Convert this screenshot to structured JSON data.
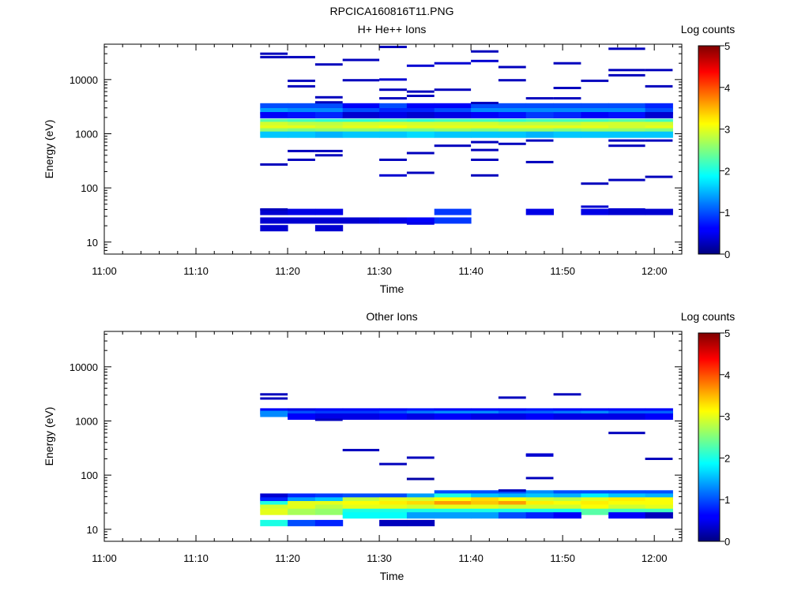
{
  "figure_title": "RPCICA160816T11.PNG",
  "chart_data": [
    {
      "type": "heatmap",
      "title": "H+ He++ Ions",
      "xlabel": "Time",
      "ylabel": "Energy (eV)",
      "x_axis": {
        "range": [
          "11:00",
          "12:03"
        ],
        "ticks": [
          "11:00",
          "11:10",
          "11:20",
          "11:30",
          "11:40",
          "11:50",
          "12:00"
        ]
      },
      "y_axis": {
        "scale": "log",
        "range": [
          6,
          45000
        ],
        "ticks": [
          "10",
          "100",
          "1000",
          "10000"
        ]
      },
      "colorbar": {
        "label": "Log counts",
        "range": [
          0,
          5
        ],
        "ticks": [
          "0",
          "1",
          "2",
          "3",
          "4",
          "5"
        ]
      },
      "time_columns": [
        "11:17",
        "11:20",
        "11:23",
        "11:26",
        "11:30",
        "11:33",
        "11:36",
        "11:40",
        "11:43",
        "11:46",
        "11:49",
        "11:52",
        "11:55",
        "11:59"
      ],
      "time_end": "12:02",
      "dense_rows": [
        {
          "energy": 3200,
          "values": [
            1.0,
            1.0,
            1.0,
            0.6,
            1.0,
            0.6,
            0.6,
            1.0,
            1.0,
            1.0,
            1.0,
            1.0,
            1.0,
            0.8
          ]
        },
        {
          "energy": 2600,
          "values": [
            1.4,
            1.3,
            1.3,
            1.0,
            0.8,
            0.8,
            1.0,
            1.3,
            1.3,
            1.3,
            1.3,
            1.3,
            1.3,
            1.0
          ]
        },
        {
          "energy": 2200,
          "values": [
            0.6,
            0.7,
            0.8,
            0.4,
            0.5,
            0.4,
            0.5,
            0.6,
            0.7,
            0.9,
            0.8,
            0.6,
            0.7,
            0.4
          ]
        },
        {
          "energy": 1650,
          "values": [
            2.3,
            2.2,
            2.1,
            2.1,
            2.2,
            2.1,
            2.2,
            2.2,
            2.1,
            2.2,
            2.2,
            2.2,
            2.3,
            2.2
          ]
        },
        {
          "energy": 1450,
          "values": [
            2.9,
            2.8,
            2.8,
            2.9,
            2.9,
            2.9,
            2.9,
            2.9,
            2.8,
            2.8,
            2.8,
            2.9,
            2.9,
            2.9
          ]
        },
        {
          "energy": 1250,
          "values": [
            3.0,
            3.0,
            2.9,
            3.0,
            3.1,
            3.0,
            3.0,
            3.0,
            3.0,
            3.0,
            3.0,
            3.0,
            2.9,
            3.0
          ]
        },
        {
          "energy": 1100,
          "values": [
            2.6,
            2.5,
            2.6,
            2.6,
            2.5,
            2.5,
            2.6,
            2.5,
            2.6,
            2.6,
            2.5,
            2.6,
            2.6,
            2.5
          ]
        },
        {
          "energy": 960,
          "values": [
            1.6,
            1.6,
            1.5,
            1.6,
            1.6,
            1.7,
            1.6,
            1.6,
            1.6,
            1.5,
            1.6,
            1.6,
            1.6,
            1.6
          ]
        },
        {
          "energy": 36,
          "values": [
            0.4,
            0.5,
            0.5,
            null,
            null,
            null,
            0.9,
            null,
            null,
            0.5,
            null,
            0.5,
            0.4,
            0.4
          ]
        },
        {
          "energy": 25,
          "values": [
            0.4,
            0.4,
            0.4,
            0.4,
            0.5,
            0.6,
            0.9,
            null,
            null,
            null,
            null,
            null,
            null,
            null
          ]
        },
        {
          "energy": 18,
          "values": [
            0.4,
            null,
            0.4,
            null,
            null,
            null,
            null,
            null,
            null,
            null,
            null,
            null,
            null,
            null
          ]
        }
      ],
      "sparse_marks": [
        {
          "col": 0,
          "energy": 30000,
          "v": 0.3
        },
        {
          "col": 0,
          "energy": 26000,
          "v": 0.3
        },
        {
          "col": 1,
          "energy": 26000,
          "v": 0.3
        },
        {
          "col": 2,
          "energy": 19000,
          "v": 0.3
        },
        {
          "col": 3,
          "energy": 23000,
          "v": 0.3
        },
        {
          "col": 4,
          "energy": 40000,
          "v": 0.3
        },
        {
          "col": 5,
          "energy": 18000,
          "v": 0.4
        },
        {
          "col": 6,
          "energy": 20000,
          "v": 0.4
        },
        {
          "col": 7,
          "energy": 33000,
          "v": 0.3
        },
        {
          "col": 7,
          "energy": 22000,
          "v": 0.4
        },
        {
          "col": 8,
          "energy": 17000,
          "v": 0.3
        },
        {
          "col": 9,
          "energy": 4500,
          "v": 0.3
        },
        {
          "col": 10,
          "energy": 20000,
          "v": 0.3
        },
        {
          "col": 12,
          "energy": 37000,
          "v": 0.3
        },
        {
          "col": 12,
          "energy": 15000,
          "v": 0.3
        },
        {
          "col": 13,
          "energy": 15000,
          "v": 0.3
        },
        {
          "col": 1,
          "energy": 9500,
          "v": 0.3
        },
        {
          "col": 1,
          "energy": 7500,
          "v": 0.3
        },
        {
          "col": 2,
          "energy": 4700,
          "v": 0.3
        },
        {
          "col": 2,
          "energy": 3800,
          "v": 0.3
        },
        {
          "col": 3,
          "energy": 9700,
          "v": 0.3
        },
        {
          "col": 4,
          "energy": 10000,
          "v": 0.4
        },
        {
          "col": 4,
          "energy": 6500,
          "v": 0.3
        },
        {
          "col": 4,
          "energy": 4500,
          "v": 0.3
        },
        {
          "col": 5,
          "energy": 6000,
          "v": 0.3
        },
        {
          "col": 5,
          "energy": 5000,
          "v": 0.3
        },
        {
          "col": 6,
          "energy": 6500,
          "v": 0.3
        },
        {
          "col": 7,
          "energy": 3700,
          "v": 0.3
        },
        {
          "col": 8,
          "energy": 9700,
          "v": 0.3
        },
        {
          "col": 10,
          "energy": 4500,
          "v": 0.3
        },
        {
          "col": 10,
          "energy": 7000,
          "v": 0.3
        },
        {
          "col": 11,
          "energy": 9500,
          "v": 0.3
        },
        {
          "col": 12,
          "energy": 12000,
          "v": 0.3
        },
        {
          "col": 13,
          "energy": 7500,
          "v": 0.3
        },
        {
          "col": 0,
          "energy": 270,
          "v": 0.3
        },
        {
          "col": 1,
          "energy": 480,
          "v": 0.3
        },
        {
          "col": 1,
          "energy": 330,
          "v": 0.3
        },
        {
          "col": 2,
          "energy": 480,
          "v": 0.3
        },
        {
          "col": 2,
          "energy": 400,
          "v": 0.3
        },
        {
          "col": 4,
          "energy": 330,
          "v": 0.3
        },
        {
          "col": 4,
          "energy": 170,
          "v": 0.4
        },
        {
          "col": 5,
          "energy": 440,
          "v": 0.3
        },
        {
          "col": 5,
          "energy": 190,
          "v": 0.3
        },
        {
          "col": 6,
          "energy": 600,
          "v": 0.3
        },
        {
          "col": 7,
          "energy": 700,
          "v": 0.3
        },
        {
          "col": 7,
          "energy": 500,
          "v": 0.3
        },
        {
          "col": 7,
          "energy": 330,
          "v": 0.3
        },
        {
          "col": 7,
          "energy": 170,
          "v": 0.3
        },
        {
          "col": 8,
          "energy": 650,
          "v": 0.3
        },
        {
          "col": 9,
          "energy": 750,
          "v": 0.3
        },
        {
          "col": 9,
          "energy": 300,
          "v": 0.3
        },
        {
          "col": 11,
          "energy": 120,
          "v": 0.3
        },
        {
          "col": 12,
          "energy": 750,
          "v": 0.3
        },
        {
          "col": 12,
          "energy": 600,
          "v": 0.3
        },
        {
          "col": 12,
          "energy": 140,
          "v": 0.3
        },
        {
          "col": 13,
          "energy": 750,
          "v": 0.3
        },
        {
          "col": 13,
          "energy": 160,
          "v": 0.3
        },
        {
          "col": 0,
          "energy": 40,
          "v": 0.3
        },
        {
          "col": 5,
          "energy": 22,
          "v": 0.5
        },
        {
          "col": 11,
          "energy": 45,
          "v": 0.4
        },
        {
          "col": 12,
          "energy": 40,
          "v": 0.4
        }
      ]
    },
    {
      "type": "heatmap",
      "title": "Other Ions",
      "xlabel": "Time",
      "ylabel": "Energy (eV)",
      "x_axis": {
        "range": [
          "11:00",
          "12:03"
        ],
        "ticks": [
          "11:00",
          "11:10",
          "11:20",
          "11:30",
          "11:40",
          "11:50",
          "12:00"
        ]
      },
      "y_axis": {
        "scale": "log",
        "range": [
          6,
          45000
        ],
        "ticks": [
          "10",
          "100",
          "1000",
          "10000"
        ]
      },
      "colorbar": {
        "label": "Log counts",
        "range": [
          0,
          5
        ],
        "ticks": [
          "0",
          "1",
          "2",
          "3",
          "4",
          "5"
        ]
      },
      "time_columns": [
        "11:17",
        "11:20",
        "11:23",
        "11:26",
        "11:30",
        "11:33",
        "11:36",
        "11:40",
        "11:43",
        "11:46",
        "11:49",
        "11:52",
        "11:55",
        "11:59"
      ],
      "time_end": "12:02",
      "dense_rows": [
        {
          "energy": 1500,
          "values": [
            0.6,
            0.5,
            0.6,
            0.6,
            0.6,
            0.7,
            0.6,
            0.6,
            0.6,
            0.7,
            0.6,
            0.6,
            0.6,
            0.6
          ]
        },
        {
          "energy": 1350,
          "values": [
            1.3,
            1.0,
            0.9,
            0.9,
            1.0,
            1.2,
            1.3,
            1.3,
            1.1,
            1.1,
            1.2,
            1.3,
            1.1,
            1.1
          ]
        },
        {
          "energy": 1200,
          "values": [
            null,
            0.6,
            0.5,
            0.5,
            0.6,
            0.5,
            0.6,
            0.5,
            0.5,
            0.6,
            0.5,
            0.5,
            0.5,
            0.6
          ]
        },
        {
          "energy": 46,
          "values": [
            null,
            null,
            null,
            null,
            null,
            null,
            1.0,
            1.0,
            1.0,
            1.3,
            1.0,
            1.0,
            1.0,
            1.0
          ]
        },
        {
          "energy": 40,
          "values": [
            0.4,
            0.8,
            0.9,
            1.0,
            1.0,
            1.4,
            2.0,
            1.6,
            1.5,
            1.6,
            1.5,
            1.8,
            1.6,
            1.5
          ]
        },
        {
          "energy": 34,
          "values": [
            0.8,
            1.4,
            1.6,
            2.8,
            3.0,
            2.9,
            3.1,
            3.3,
            3.1,
            2.9,
            2.8,
            3.0,
            3.2,
            3.1
          ]
        },
        {
          "energy": 29,
          "values": [
            2.0,
            3.0,
            3.0,
            3.1,
            3.2,
            3.3,
            3.6,
            3.4,
            3.6,
            3.2,
            3.1,
            3.2,
            3.1,
            3.1
          ]
        },
        {
          "energy": 25,
          "values": [
            2.9,
            3.0,
            2.8,
            3.0,
            3.0,
            2.9,
            3.0,
            3.0,
            2.9,
            2.9,
            2.9,
            3.1,
            2.9,
            3.0
          ]
        },
        {
          "energy": 21,
          "values": [
            3.0,
            2.7,
            2.6,
            2.0,
            2.0,
            2.0,
            2.0,
            2.0,
            2.0,
            2.0,
            2.0,
            2.3,
            2.2,
            2.2
          ]
        },
        {
          "energy": 18,
          "values": [
            null,
            null,
            null,
            1.9,
            1.9,
            1.4,
            1.4,
            1.4,
            1.0,
            0.8,
            0.6,
            null,
            0.6,
            0.3
          ]
        },
        {
          "energy": 13,
          "values": [
            2.0,
            1.0,
            0.8,
            null,
            0.3,
            0.3,
            null,
            null,
            null,
            null,
            null,
            null,
            null,
            null
          ]
        }
      ],
      "sparse_marks": [
        {
          "col": 0,
          "energy": 3100,
          "v": 0.3
        },
        {
          "col": 0,
          "energy": 2600,
          "v": 0.3
        },
        {
          "col": 2,
          "energy": 1050,
          "v": 0.3
        },
        {
          "col": 3,
          "energy": 290,
          "v": 0.3
        },
        {
          "col": 4,
          "energy": 160,
          "v": 0.3
        },
        {
          "col": 5,
          "energy": 210,
          "v": 0.3
        },
        {
          "col": 5,
          "energy": 85,
          "v": 0.2
        },
        {
          "col": 8,
          "energy": 2700,
          "v": 0.3
        },
        {
          "col": 8,
          "energy": 52,
          "v": 0.3
        },
        {
          "col": 9,
          "energy": 240,
          "v": 0.4
        },
        {
          "col": 9,
          "energy": 230,
          "v": 0.4
        },
        {
          "col": 9,
          "energy": 88,
          "v": 0.3
        },
        {
          "col": 10,
          "energy": 3100,
          "v": 0.3
        },
        {
          "col": 12,
          "energy": 600,
          "v": 0.3
        },
        {
          "col": 13,
          "energy": 200,
          "v": 0.3
        }
      ]
    }
  ]
}
